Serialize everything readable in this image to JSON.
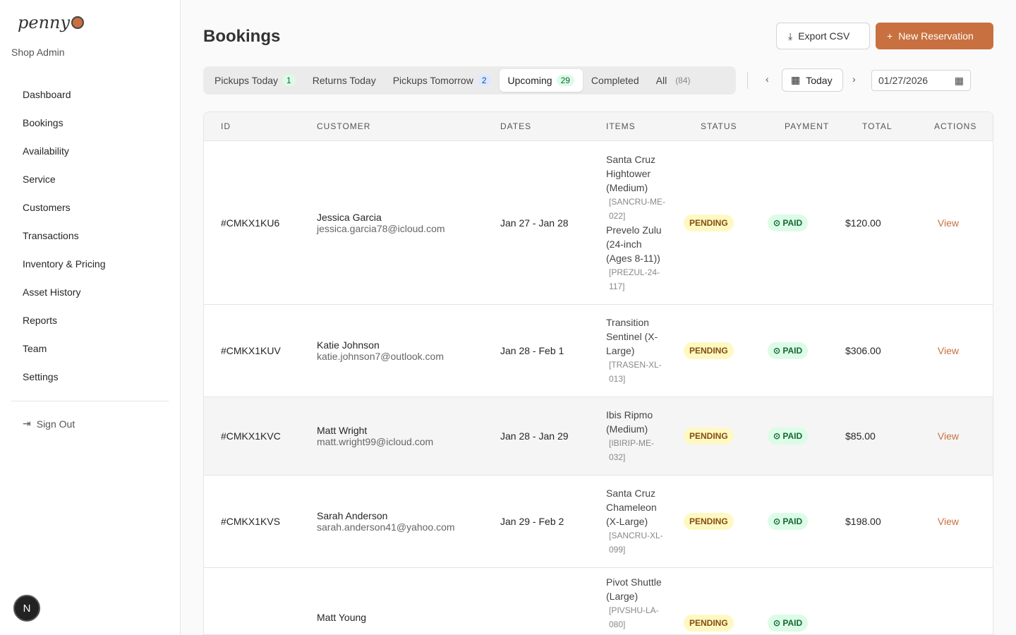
{
  "brand": {
    "logo": "penny",
    "subtitle": "Shop Admin"
  },
  "nav": [
    "Dashboard",
    "Bookings",
    "Availability",
    "Service",
    "Customers",
    "Transactions",
    "Inventory & Pricing",
    "Asset History",
    "Reports",
    "Team",
    "Settings"
  ],
  "sign_out": "Sign Out",
  "avatar": "N",
  "page_title": "Bookings",
  "export_label": "Export CSV",
  "new_label": "New Reservation",
  "tabs": [
    {
      "label": "Pickups Today",
      "count": "1"
    },
    {
      "label": "Returns Today",
      "count": ""
    },
    {
      "label": "Pickups Tomorrow",
      "count": "2"
    },
    {
      "label": "Upcoming",
      "count": "29"
    },
    {
      "label": "Completed",
      "count": ""
    },
    {
      "label": "All",
      "count": "(84)"
    }
  ],
  "today_label": "Today",
  "date_value": "01/27/2026",
  "columns": [
    "ID",
    "CUSTOMER",
    "DATES",
    "ITEMS",
    "STATUS",
    "PAYMENT",
    "TOTAL",
    "ACTIONS"
  ],
  "rows": [
    {
      "id": "#CMKX1KU6",
      "name": "Jessica Garcia",
      "email": "jessica.garcia78@icloud.com",
      "dates": "Jan 27 - Jan 28",
      "items": [
        {
          "name": "Santa Cruz Hightower (Medium)",
          "sku": "[SANCRU-ME-022]"
        },
        {
          "name": "Prevelo Zulu (24-inch (Ages 8-11))",
          "sku": "[PREZUL-24-117]"
        }
      ],
      "status": "PENDING",
      "payment": "PAID",
      "total": "$120.00",
      "action": "View"
    },
    {
      "id": "#CMKX1KUV",
      "name": "Katie Johnson",
      "email": "katie.johnson7@outlook.com",
      "dates": "Jan 28 - Feb 1",
      "items": [
        {
          "name": "Transition Sentinel (X-Large)",
          "sku": "[TRASEN-XL-013]"
        }
      ],
      "status": "PENDING",
      "payment": "PAID",
      "total": "$306.00",
      "action": "View"
    },
    {
      "id": "#CMKX1KVC",
      "name": "Matt Wright",
      "email": "matt.wright99@icloud.com",
      "dates": "Jan 28 - Jan 29",
      "items": [
        {
          "name": "Ibis Ripmo (Medium)",
          "sku": "[IBIRIP-ME-032]"
        }
      ],
      "status": "PENDING",
      "payment": "PAID",
      "total": "$85.00",
      "action": "View"
    },
    {
      "id": "#CMKX1KVS",
      "name": "Sarah Anderson",
      "email": "sarah.anderson41@yahoo.com",
      "dates": "Jan 29 - Feb 2",
      "items": [
        {
          "name": "Santa Cruz Chameleon (X-Large)",
          "sku": "[SANCRU-XL-099]"
        }
      ],
      "status": "PENDING",
      "payment": "PAID",
      "total": "$198.00",
      "action": "View"
    },
    {
      "id": "",
      "name": "Matt Young",
      "email": "",
      "dates": "",
      "items": [
        {
          "name": "Pivot Shuttle (Large)",
          "sku": "[PIVSHU-LA-080]"
        }
      ],
      "status": "PENDING",
      "payment": "PAID",
      "total": "",
      "action": ""
    }
  ],
  "colors": {
    "accent": "#c8703f",
    "pending_bg": "#fef9c3",
    "paid_bg": "#dcfce7"
  }
}
